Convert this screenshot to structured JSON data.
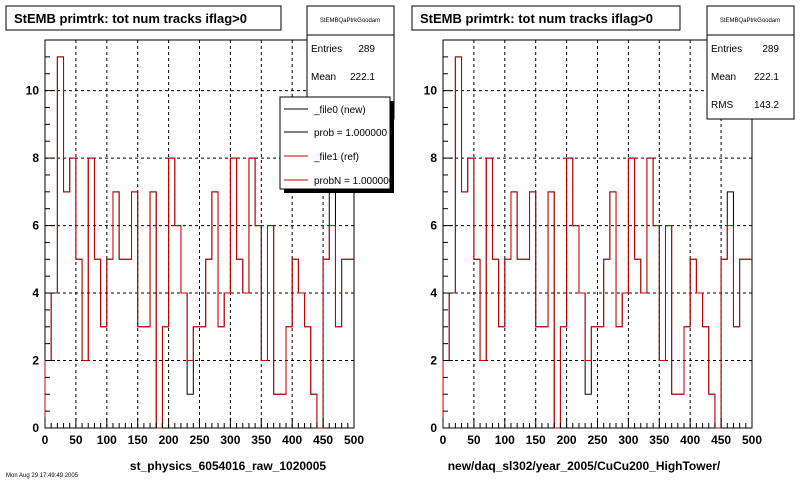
{
  "panels": [
    {
      "title": "StEMB primtrk: tot num tracks iflag>0",
      "xlabel": "st_physics_6054016_raw_1020005",
      "stats": {
        "name": "StEMBQaPtrkGoodam",
        "rows": [
          {
            "label": "Entries",
            "value": "289"
          },
          {
            "label": "Mean",
            "value": "222.1"
          }
        ]
      },
      "legend": {
        "entries": [
          {
            "label": "_file0 (new)",
            "color": "#000000"
          },
          {
            "label": "prob = 1.000000",
            "color": "#000000"
          },
          {
            "label": "_file1 (ref)",
            "color": "#cc0000"
          },
          {
            "label": "probN = 1.000000",
            "color": "#cc0000"
          }
        ]
      }
    },
    {
      "title": "StEMB primtrk: tot num tracks iflag>0",
      "xlabel": "new/daq_sl302/year_2005/CuCu200_HighTower/",
      "stats": {
        "name": "StEMBQaPtrkGoodam",
        "rows": [
          {
            "label": "Entries",
            "value": "289"
          },
          {
            "label": "Mean",
            "value": "222.1"
          },
          {
            "label": "RMS",
            "value": "143.2"
          }
        ]
      }
    }
  ],
  "footer_text": "Mon Aug 29 17:49:49 2005",
  "chart_data": {
    "type": "histogram",
    "x_range": [
      0,
      500
    ],
    "y_range": [
      0,
      11.5
    ],
    "x_ticks": [
      0,
      50,
      100,
      150,
      200,
      250,
      300,
      350,
      400,
      450,
      500
    ],
    "y_ticks": [
      0,
      2,
      4,
      6,
      8,
      10
    ],
    "grid": true,
    "bin_width": 10,
    "series": [
      {
        "color": "#000000",
        "values": [
          2,
          4,
          11,
          7,
          8,
          5,
          2,
          8,
          5,
          3,
          5,
          7,
          5,
          5,
          7,
          3,
          3,
          7,
          0,
          3,
          8,
          6,
          4,
          1,
          3,
          3,
          5,
          7,
          3,
          4,
          8,
          5,
          4,
          8,
          6,
          2,
          6,
          1,
          1,
          3,
          5,
          4,
          3,
          1,
          0,
          5,
          7,
          3,
          5,
          5
        ]
      },
      {
        "color": "#cc0000",
        "values": [
          2,
          4,
          11,
          7,
          8,
          5,
          2,
          8,
          5,
          3,
          5,
          7,
          5,
          5,
          7,
          3,
          3,
          7,
          0,
          3,
          8,
          6,
          4,
          2,
          3,
          3,
          5,
          7,
          3,
          4,
          8,
          5,
          4,
          8,
          6,
          2,
          6,
          1,
          1,
          3,
          5,
          4,
          3,
          1,
          0,
          5,
          6,
          3,
          5,
          5
        ]
      }
    ]
  }
}
